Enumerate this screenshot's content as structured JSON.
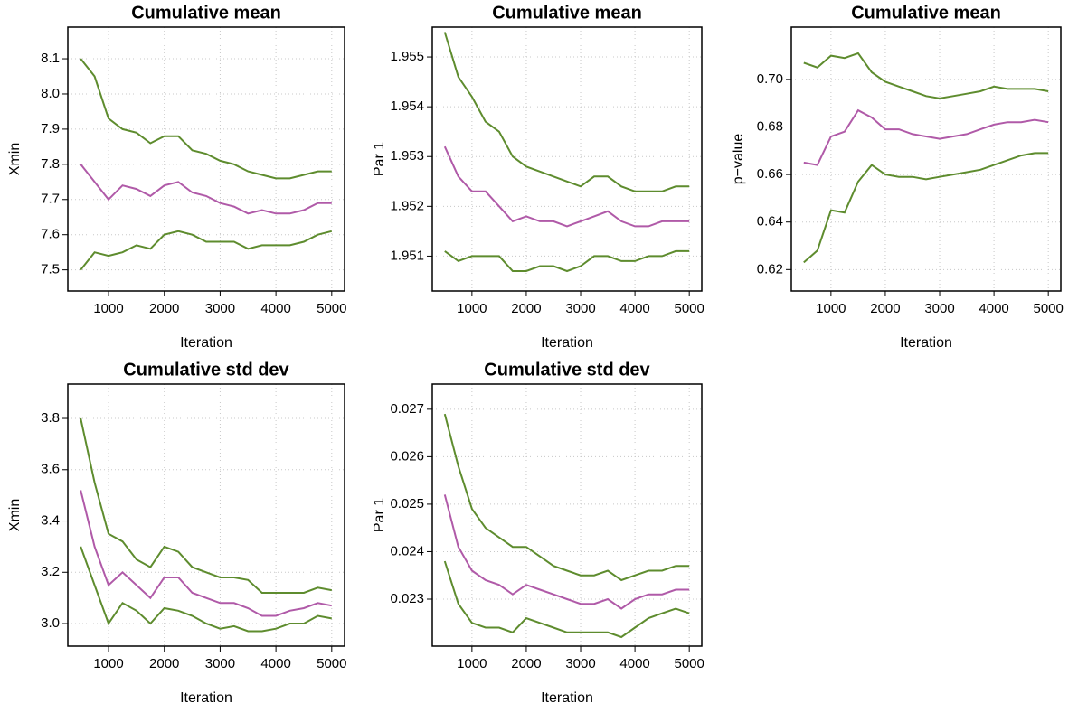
{
  "chart_data": [
    {
      "type": "line",
      "title": "Cumulative mean",
      "xlabel": "Iteration",
      "ylabel": "Xmin",
      "x": [
        500,
        750,
        1000,
        1250,
        1500,
        1750,
        2000,
        2250,
        2500,
        2750,
        3000,
        3250,
        3500,
        3750,
        4000,
        4250,
        4500,
        4750,
        5000
      ],
      "xlim": [
        270,
        5230
      ],
      "xticks": [
        1000,
        2000,
        3000,
        4000,
        5000
      ],
      "ylim": [
        7.44,
        8.19
      ],
      "yticks": [
        7.5,
        7.6,
        7.7,
        7.8,
        7.9,
        {
          "value": 8,
          "label": "8.0"
        },
        8.1
      ],
      "grid": true,
      "series": [
        {
          "color": "#5e8c2e",
          "values": [
            8.1,
            8.05,
            7.93,
            7.9,
            7.89,
            7.86,
            7.88,
            7.88,
            7.84,
            7.83,
            7.81,
            7.8,
            7.78,
            7.77,
            7.76,
            7.76,
            7.77,
            7.78,
            7.78
          ]
        },
        {
          "color": "#b05aa8",
          "values": [
            7.8,
            7.75,
            7.7,
            7.74,
            7.73,
            7.71,
            7.74,
            7.75,
            7.72,
            7.71,
            7.69,
            7.68,
            7.66,
            7.67,
            7.66,
            7.66,
            7.67,
            7.69,
            7.69
          ]
        },
        {
          "color": "#5e8c2e",
          "values": [
            7.5,
            7.55,
            7.54,
            7.55,
            7.57,
            7.56,
            7.6,
            7.61,
            7.6,
            7.58,
            7.58,
            7.58,
            7.56,
            7.57,
            7.57,
            7.57,
            7.58,
            7.6,
            7.61
          ]
        }
      ]
    },
    {
      "type": "line",
      "title": "Cumulative mean",
      "xlabel": "Iteration",
      "ylabel": "Par 1",
      "x": [
        500,
        750,
        1000,
        1250,
        1500,
        1750,
        2000,
        2250,
        2500,
        2750,
        3000,
        3250,
        3500,
        3750,
        4000,
        4250,
        4500,
        4750,
        5000
      ],
      "xlim": [
        270,
        5230
      ],
      "xticks": [
        1000,
        2000,
        3000,
        4000,
        5000
      ],
      "ylim": [
        1.9503,
        1.9556
      ],
      "yticks": [
        1.951,
        1.952,
        1.953,
        1.954,
        1.955
      ],
      "grid": true,
      "series": [
        {
          "color": "#5e8c2e",
          "values": [
            1.9555,
            1.9546,
            1.9542,
            1.9537,
            1.9535,
            1.953,
            1.9528,
            1.9527,
            1.9526,
            1.9525,
            1.9524,
            1.9526,
            1.9526,
            1.9524,
            1.9523,
            1.9523,
            1.9523,
            1.9524,
            1.9524
          ]
        },
        {
          "color": "#b05aa8",
          "values": [
            1.9532,
            1.9526,
            1.9523,
            1.9523,
            1.952,
            1.9517,
            1.9518,
            1.9517,
            1.9517,
            1.9516,
            1.9517,
            1.9518,
            1.9519,
            1.9517,
            1.9516,
            1.9516,
            1.9517,
            1.9517,
            1.9517
          ]
        },
        {
          "color": "#5e8c2e",
          "values": [
            1.9511,
            1.9509,
            1.951,
            1.951,
            1.951,
            1.9507,
            1.9507,
            1.9508,
            1.9508,
            1.9507,
            1.9508,
            1.951,
            1.951,
            1.9509,
            1.9509,
            1.951,
            1.951,
            1.9511,
            1.9511
          ]
        }
      ]
    },
    {
      "type": "line",
      "title": "Cumulative mean",
      "xlabel": "Iteration",
      "ylabel": "p−value",
      "x": [
        500,
        750,
        1000,
        1250,
        1500,
        1750,
        2000,
        2250,
        2500,
        2750,
        3000,
        3250,
        3500,
        3750,
        4000,
        4250,
        4500,
        4750,
        5000
      ],
      "xlim": [
        270,
        5230
      ],
      "xticks": [
        1000,
        2000,
        3000,
        4000,
        5000
      ],
      "ylim": [
        0.611,
        0.722
      ],
      "yticks": [
        0.62,
        0.64,
        0.66,
        0.68,
        {
          "value": 0.7,
          "label": "0.70"
        }
      ],
      "grid": true,
      "series": [
        {
          "color": "#5e8c2e",
          "values": [
            0.707,
            0.705,
            0.71,
            0.709,
            0.711,
            0.703,
            0.699,
            0.697,
            0.695,
            0.693,
            0.692,
            0.693,
            0.694,
            0.695,
            0.697,
            0.696,
            0.696,
            0.696,
            0.695
          ]
        },
        {
          "color": "#b05aa8",
          "values": [
            0.665,
            0.664,
            0.676,
            0.678,
            0.687,
            0.684,
            0.679,
            0.679,
            0.677,
            0.676,
            0.675,
            0.676,
            0.677,
            0.679,
            0.681,
            0.682,
            0.682,
            0.683,
            0.682
          ]
        },
        {
          "color": "#5e8c2e",
          "values": [
            0.623,
            0.628,
            0.645,
            0.644,
            0.657,
            0.664,
            0.66,
            0.659,
            0.659,
            0.658,
            0.659,
            0.66,
            0.661,
            0.662,
            0.664,
            0.666,
            0.668,
            0.669,
            0.669
          ]
        }
      ]
    },
    {
      "type": "line",
      "title": "Cumulative std dev",
      "xlabel": "Iteration",
      "ylabel": "Xmin",
      "x": [
        500,
        750,
        1000,
        1250,
        1500,
        1750,
        2000,
        2250,
        2500,
        2750,
        3000,
        3250,
        3500,
        3750,
        4000,
        4250,
        4500,
        4750,
        5000
      ],
      "xlim": [
        270,
        5230
      ],
      "xticks": [
        1000,
        2000,
        3000,
        4000,
        5000
      ],
      "ylim": [
        2.912,
        3.934
      ],
      "yticks": [
        {
          "value": 3,
          "label": "3.0"
        },
        3.2,
        3.4,
        3.6,
        3.8
      ],
      "grid": true,
      "series": [
        {
          "color": "#5e8c2e",
          "values": [
            3.8,
            3.55,
            3.35,
            3.32,
            3.25,
            3.22,
            3.3,
            3.28,
            3.22,
            3.2,
            3.18,
            3.18,
            3.17,
            3.12,
            3.12,
            3.12,
            3.12,
            3.14,
            3.13
          ]
        },
        {
          "color": "#b05aa8",
          "values": [
            3.52,
            3.3,
            3.15,
            3.2,
            3.15,
            3.1,
            3.18,
            3.18,
            3.12,
            3.1,
            3.08,
            3.08,
            3.06,
            3.03,
            3.03,
            3.05,
            3.06,
            3.08,
            3.07
          ]
        },
        {
          "color": "#5e8c2e",
          "values": [
            3.3,
            3.15,
            3.0,
            3.08,
            3.05,
            3.0,
            3.06,
            3.05,
            3.03,
            3.0,
            2.98,
            2.99,
            2.97,
            2.97,
            2.98,
            3.0,
            3.0,
            3.03,
            3.02
          ]
        }
      ]
    },
    {
      "type": "line",
      "title": "Cumulative std dev",
      "xlabel": "Iteration",
      "ylabel": "Par 1",
      "x": [
        500,
        750,
        1000,
        1250,
        1500,
        1750,
        2000,
        2250,
        2500,
        2750,
        3000,
        3250,
        3500,
        3750,
        4000,
        4250,
        4500,
        4750,
        5000
      ],
      "xlim": [
        270,
        5230
      ],
      "xticks": [
        1000,
        2000,
        3000,
        4000,
        5000
      ],
      "ylim": [
        0.02201,
        0.02753
      ],
      "yticks": [
        0.023,
        0.024,
        0.025,
        0.026,
        0.027
      ],
      "grid": true,
      "series": [
        {
          "color": "#5e8c2e",
          "values": [
            0.0269,
            0.0258,
            0.0249,
            0.0245,
            0.0243,
            0.0241,
            0.0241,
            0.0239,
            0.0237,
            0.0236,
            0.0235,
            0.0235,
            0.0236,
            0.0234,
            0.0235,
            0.0236,
            0.0236,
            0.0237,
            0.0237
          ]
        },
        {
          "color": "#b05aa8",
          "values": [
            0.0252,
            0.0241,
            0.0236,
            0.0234,
            0.0233,
            0.0231,
            0.0233,
            0.0232,
            0.0231,
            0.023,
            0.0229,
            0.0229,
            0.023,
            0.0228,
            0.023,
            0.0231,
            0.0231,
            0.0232,
            0.0232
          ]
        },
        {
          "color": "#5e8c2e",
          "values": [
            0.0238,
            0.0229,
            0.0225,
            0.0224,
            0.0224,
            0.0223,
            0.0226,
            0.0225,
            0.0224,
            0.0223,
            0.0223,
            0.0223,
            0.0223,
            0.0222,
            0.0224,
            0.0226,
            0.0227,
            0.0228,
            0.0227
          ]
        }
      ]
    }
  ]
}
